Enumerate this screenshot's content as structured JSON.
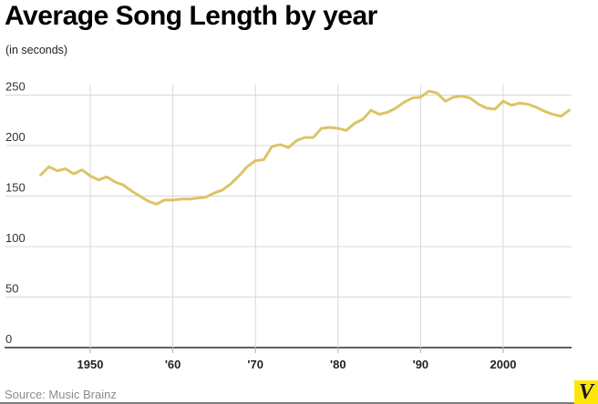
{
  "header": {
    "title": "Average Song Length by year",
    "subtitle": "(in seconds)"
  },
  "source": {
    "label": "Source: Music Brainz"
  },
  "logo": {
    "letter": "V",
    "bg_color": "#ffe60a"
  },
  "chart_data": {
    "type": "line",
    "title": "Average Song Length by year",
    "subtitle": "(in seconds)",
    "xlabel": "",
    "ylabel": "seconds",
    "grid": true,
    "legend": "none",
    "xlim": [
      1943,
      2009
    ],
    "ylim": [
      0,
      260
    ],
    "line_color": "#dcc466",
    "grid_color": "#d8d8d8",
    "axis_color": "#2b2b2b",
    "tick_stub_color": "#aaaaaa",
    "y_ticks": [
      0,
      50,
      100,
      150,
      200,
      250
    ],
    "y_tick_labels": [
      "0",
      "50",
      "100",
      "150",
      "200",
      "250"
    ],
    "x_ticks": [
      {
        "value": 1950,
        "label": "1950"
      },
      {
        "value": 1960,
        "label": "'60"
      },
      {
        "value": 1970,
        "label": "'70"
      },
      {
        "value": 1980,
        "label": "'80"
      },
      {
        "value": 1990,
        "label": "'90"
      },
      {
        "value": 2000,
        "label": "2000"
      }
    ],
    "x": [
      1944,
      1945,
      1946,
      1947,
      1948,
      1949,
      1950,
      1951,
      1952,
      1953,
      1954,
      1955,
      1956,
      1957,
      1958,
      1959,
      1960,
      1961,
      1962,
      1963,
      1964,
      1965,
      1966,
      1967,
      1968,
      1969,
      1970,
      1971,
      1972,
      1973,
      1974,
      1975,
      1976,
      1977,
      1978,
      1979,
      1980,
      1981,
      1982,
      1983,
      1984,
      1985,
      1986,
      1987,
      1988,
      1989,
      1990,
      1991,
      1992,
      1993,
      1994,
      1995,
      1996,
      1997,
      1998,
      1999,
      2000,
      2001,
      2002,
      2003,
      2004,
      2005,
      2006,
      2007,
      2008
    ],
    "values": [
      171,
      179,
      175,
      177,
      172,
      176,
      170,
      166,
      169,
      164,
      161,
      155,
      150,
      145,
      142,
      146,
      146,
      147,
      147,
      148,
      149,
      153,
      156,
      162,
      170,
      179,
      185,
      186,
      199,
      201,
      198,
      205,
      208,
      208,
      217,
      218,
      217,
      215,
      222,
      226,
      235,
      231,
      233,
      237,
      243,
      247,
      248,
      254,
      252,
      244,
      248,
      249,
      247,
      241,
      237,
      236,
      244,
      240,
      242,
      241,
      238,
      234,
      231,
      229,
      235
    ]
  }
}
